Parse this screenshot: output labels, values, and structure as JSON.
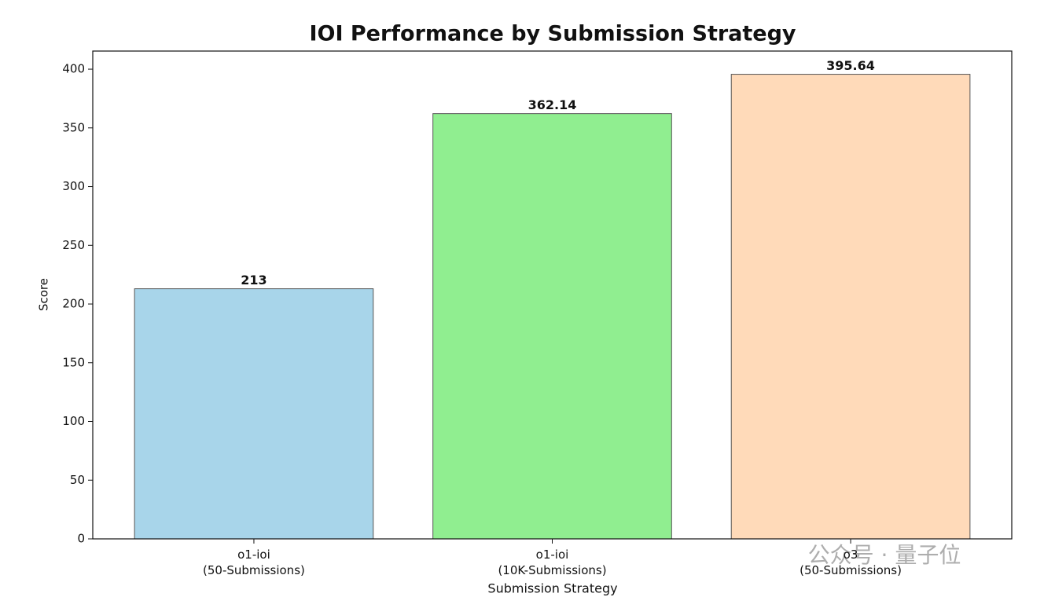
{
  "chart_data": {
    "type": "bar",
    "title": "IOI Performance by Submission Strategy",
    "x_label": "Submission Strategy",
    "y_label": "Score",
    "categories": [
      "o1-ioi\n(50-Submissions)",
      "o1-ioi\n(10K-Submissions)",
      "o3\n(50-Submissions)"
    ],
    "values": [
      213,
      362.14,
      395.64
    ],
    "colors": [
      "#a8d5ea",
      "#90ee90",
      "#ffdab9"
    ],
    "ylim": [
      0,
      415.42
    ],
    "yticks": [
      0,
      50,
      100,
      150,
      200,
      250,
      300,
      350,
      400
    ],
    "grid": false,
    "watermark": "公众号 · 量子位"
  }
}
